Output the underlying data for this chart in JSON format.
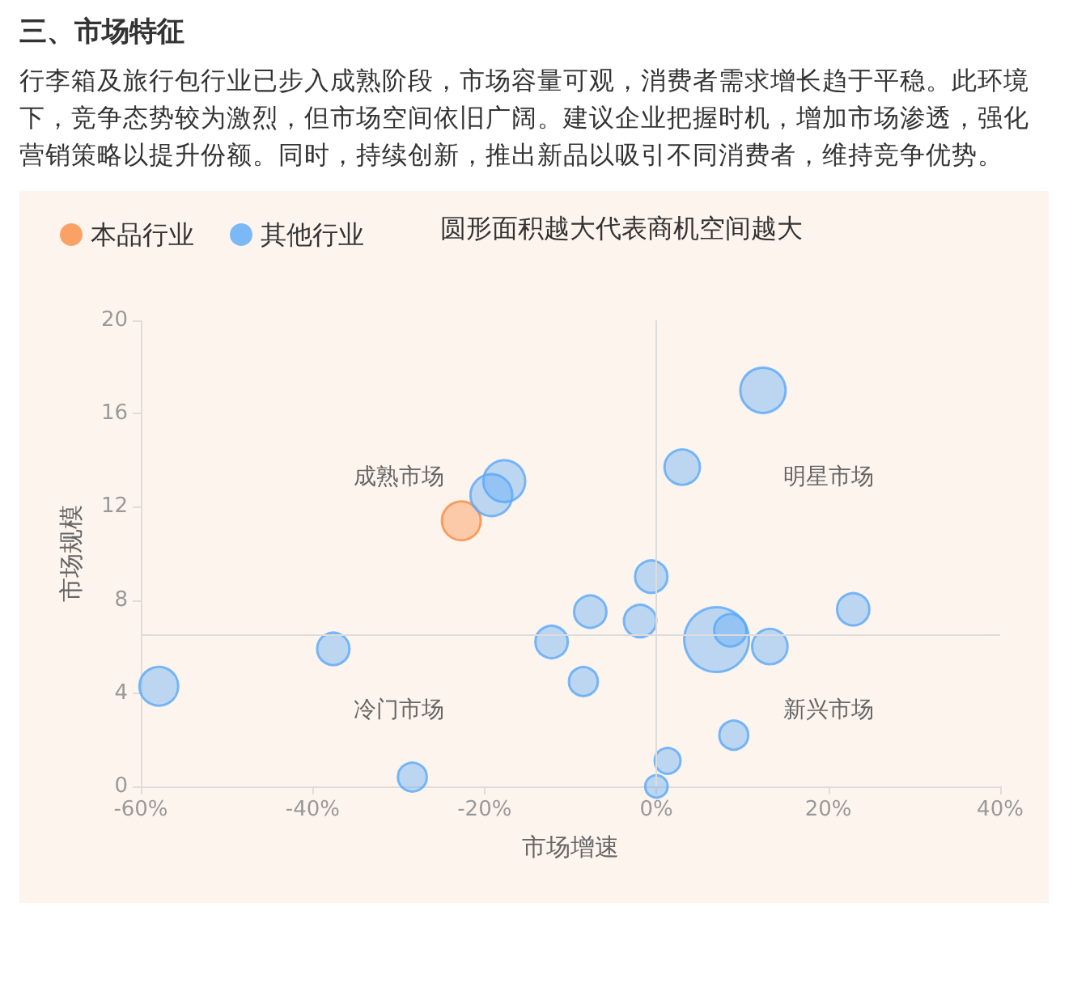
{
  "chart_data": {
    "type": "bubble",
    "title": "三、市场特征",
    "subtitle": "行李箱及旅行包行业已步入成熟阶段，市场容量可观，消费者需求增长趋于平稳。此环境下，竞争态势较为激烈，但市场空间依旧广阔。建议企业把握时机，增加市场渗透，强化营销策略以提升份额。同时，持续创新，推出新品以吸引不同消费者，维持竞争优势。",
    "xlabel": "市场增速",
    "ylabel": "市场规模",
    "xlim": [
      -60,
      40
    ],
    "xticks": [
      {
        "value": -60,
        "label": "-60%"
      },
      {
        "value": -40,
        "label": "-40%"
      },
      {
        "value": -20,
        "label": "-20%"
      },
      {
        "value": 0,
        "label": "0%"
      },
      {
        "value": 20,
        "label": "20%"
      },
      {
        "value": 40,
        "label": "40%"
      }
    ],
    "ylim": [
      0,
      20
    ],
    "yticks": [
      0,
      4,
      8,
      12,
      16,
      20
    ],
    "grid": false,
    "legend": "top left",
    "annotations": [
      "圆形面积越大代表商机空间越大",
      "成熟市场",
      "明星市场",
      "冷门市场",
      "新兴市场"
    ],
    "ref_lines": [
      {
        "axis": "x",
        "value": 0,
        "color": "#dcdcdc"
      },
      {
        "axis": "y",
        "value": 6.5,
        "color": "#dcdcdc"
      }
    ],
    "series": [
      {
        "name": "本品行业",
        "color": "#f98c42",
        "x": [
          -22.7
        ],
        "values": [
          11.4
        ],
        "sizes": [
          0.36
        ]
      },
      {
        "name": "其他行业",
        "color": "#5aa9f7",
        "x": [
          -57.9,
          -37.6,
          -28.4,
          -19.2,
          -17.7,
          -12.2,
          -7.7,
          -8.5,
          -1.9,
          -0.6,
          3.0,
          12.4,
          7.0,
          8.6,
          13.2,
          22.9,
          9.0,
          1.3,
          0
        ],
        "values": [
          4.3,
          5.9,
          0.4,
          12.5,
          13.1,
          6.2,
          7.5,
          4.5,
          7.1,
          9.0,
          13.7,
          17.0,
          6.3,
          6.7,
          6.0,
          7.6,
          2.2,
          1.1,
          0
        ],
        "sizes": [
          0.36,
          0.25,
          0.2,
          0.42,
          0.42,
          0.25,
          0.25,
          0.2,
          0.25,
          0.25,
          0.3,
          0.49,
          1,
          0.25,
          0.3,
          0.25,
          0.2,
          0.16,
          0.12
        ]
      }
    ]
  }
}
